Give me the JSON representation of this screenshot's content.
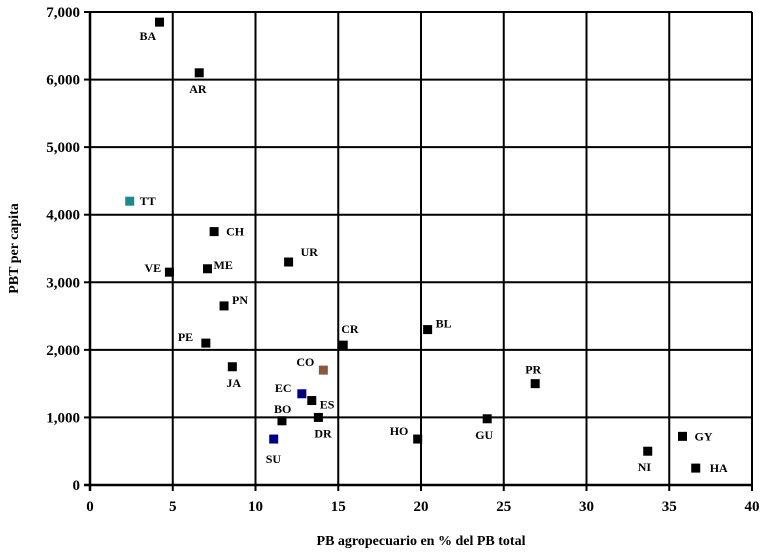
{
  "chart_data": {
    "type": "scatter",
    "xlabel": "PB agropecuario en % del PB total",
    "ylabel": "PBT per capita",
    "xlim": [
      0,
      40
    ],
    "ylim": [
      0,
      7000
    ],
    "x_ticks": [
      "0",
      "5",
      "10",
      "15",
      "20",
      "25",
      "30",
      "35",
      "40"
    ],
    "y_ticks": [
      "0",
      "1,000",
      "2,000",
      "3,000",
      "4,000",
      "5,000",
      "6,000",
      "7,000"
    ],
    "grid": true,
    "points": [
      {
        "label": "BA",
        "x": 4.2,
        "y": 6850,
        "color": "#000000"
      },
      {
        "label": "AR",
        "x": 6.6,
        "y": 6100,
        "color": "#000000"
      },
      {
        "label": "TT",
        "x": 2.4,
        "y": 4200,
        "color": "#1a8a8a"
      },
      {
        "label": "CH",
        "x": 7.5,
        "y": 3750,
        "color": "#000000"
      },
      {
        "label": "UR",
        "x": 12.0,
        "y": 3300,
        "color": "#000000"
      },
      {
        "label": "VE",
        "x": 4.8,
        "y": 3150,
        "color": "#000000"
      },
      {
        "label": "ME",
        "x": 7.1,
        "y": 3200,
        "color": "#000000"
      },
      {
        "label": "PN",
        "x": 8.1,
        "y": 2650,
        "color": "#000000"
      },
      {
        "label": "BL",
        "x": 20.4,
        "y": 2300,
        "color": "#000000"
      },
      {
        "label": "CR",
        "x": 15.3,
        "y": 2070,
        "color": "#000000"
      },
      {
        "label": "PE",
        "x": 7.0,
        "y": 2100,
        "color": "#000000"
      },
      {
        "label": "JA",
        "x": 8.6,
        "y": 1750,
        "color": "#000000"
      },
      {
        "label": "CO",
        "x": 14.1,
        "y": 1700,
        "color": "#8b5a3c"
      },
      {
        "label": "PR",
        "x": 26.9,
        "y": 1500,
        "color": "#000000"
      },
      {
        "label": "EC",
        "x": 12.8,
        "y": 1350,
        "color": "#000080"
      },
      {
        "label": "ES",
        "x": 13.4,
        "y": 1250,
        "color": "#000000"
      },
      {
        "label": "DR",
        "x": 13.8,
        "y": 1000,
        "color": "#000000"
      },
      {
        "label": "BO",
        "x": 11.6,
        "y": 950,
        "color": "#000000"
      },
      {
        "label": "GU",
        "x": 24.0,
        "y": 980,
        "color": "#000000"
      },
      {
        "label": "HO",
        "x": 19.8,
        "y": 680,
        "color": "#000000"
      },
      {
        "label": "SU",
        "x": 11.1,
        "y": 680,
        "color": "#000080"
      },
      {
        "label": "NI",
        "x": 33.7,
        "y": 500,
        "color": "#000000"
      },
      {
        "label": "GY",
        "x": 35.8,
        "y": 720,
        "color": "#000000"
      },
      {
        "label": "HA",
        "x": 36.6,
        "y": 250,
        "color": "#000000"
      }
    ]
  }
}
